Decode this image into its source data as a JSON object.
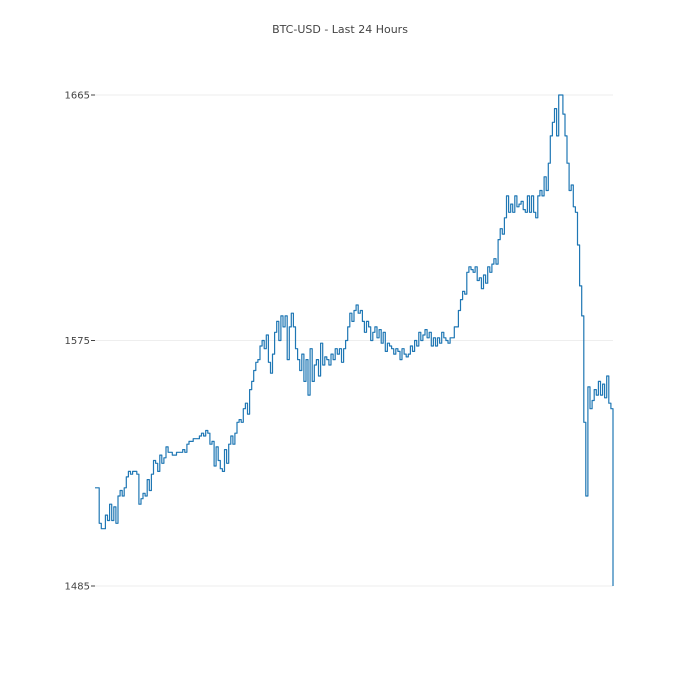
{
  "chart_data": {
    "type": "line",
    "title": "BTC-USD - Last 24 Hours",
    "xlabel": "",
    "ylabel": "",
    "ylim": [
      1485,
      1665
    ],
    "yticks": [
      "1485",
      "1575",
      "1665"
    ],
    "grid": true,
    "x_tick_labels": false,
    "color": "#1f77b4",
    "grid_color": "#eeeeee",
    "text_color": "#444444",
    "series": [
      {
        "values": [
          1521,
          1521,
          1508,
          1506,
          1506,
          1511,
          1509,
          1515,
          1509,
          1514,
          1508,
          1518,
          1520,
          1518,
          1521,
          1525,
          1527,
          1526,
          1527,
          1527,
          1526,
          1515,
          1517,
          1519,
          1518,
          1524,
          1520,
          1526,
          1531,
          1530,
          1527,
          1533,
          1530,
          1532,
          1536,
          1534,
          1534,
          1533,
          1533,
          1534,
          1534,
          1534,
          1535,
          1534,
          1537,
          1538,
          1538,
          1539,
          1539,
          1539,
          1540,
          1541,
          1540,
          1542,
          1541,
          1537,
          1538,
          1529,
          1536,
          1531,
          1528,
          1527,
          1535,
          1530,
          1537,
          1540,
          1537,
          1541,
          1545,
          1546,
          1545,
          1550,
          1552,
          1548,
          1557,
          1560,
          1564,
          1567,
          1568,
          1573,
          1575,
          1572,
          1577,
          1567,
          1563,
          1570,
          1578,
          1582,
          1575,
          1584,
          1580,
          1584,
          1568,
          1580,
          1585,
          1580,
          1572,
          1568,
          1564,
          1570,
          1560,
          1568,
          1555,
          1572,
          1560,
          1566,
          1568,
          1562,
          1574,
          1566,
          1569,
          1568,
          1566,
          1570,
          1568,
          1572,
          1570,
          1572,
          1567,
          1572,
          1575,
          1580,
          1585,
          1582,
          1586,
          1588,
          1585,
          1586,
          1582,
          1578,
          1582,
          1580,
          1575,
          1578,
          1580,
          1576,
          1579,
          1574,
          1578,
          1571,
          1574,
          1573,
          1572,
          1570,
          1572,
          1571,
          1568,
          1572,
          1570,
          1569,
          1570,
          1573,
          1571,
          1575,
          1573,
          1578,
          1575,
          1577,
          1579,
          1576,
          1578,
          1573,
          1576,
          1573,
          1576,
          1574,
          1578,
          1576,
          1575,
          1574,
          1576,
          1576,
          1580,
          1580,
          1586,
          1590,
          1593,
          1592,
          1600,
          1602,
          1601,
          1600,
          1602,
          1597,
          1598,
          1594,
          1599,
          1596,
          1602,
          1600,
          1603,
          1605,
          1603,
          1612,
          1616,
          1614,
          1620,
          1628,
          1622,
          1625,
          1622,
          1628,
          1624,
          1625,
          1626,
          1623,
          1622,
          1628,
          1622,
          1628,
          1622,
          1620,
          1628,
          1630,
          1628,
          1635,
          1630,
          1640,
          1650,
          1655,
          1660,
          1650,
          1665,
          1665,
          1658,
          1650,
          1640,
          1630,
          1632,
          1624,
          1622,
          1610,
          1595,
          1584,
          1545,
          1518,
          1558,
          1550,
          1553,
          1557,
          1555,
          1560,
          1555,
          1559,
          1554,
          1562,
          1552,
          1550,
          1485
        ]
      }
    ]
  }
}
